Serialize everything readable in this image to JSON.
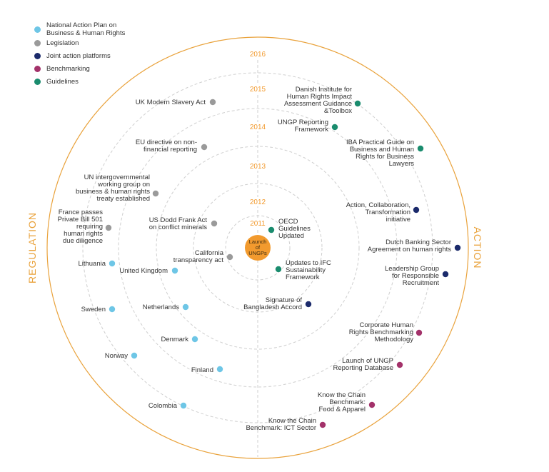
{
  "legend": [
    {
      "id": "nap",
      "label_lines": [
        "National Action Plan on",
        "Business & Human Rights"
      ],
      "color": "#6ec6e6"
    },
    {
      "id": "leg",
      "label_lines": [
        "Legislation"
      ],
      "color": "#9a9a9a"
    },
    {
      "id": "jap",
      "label_lines": [
        "Joint action platforms"
      ],
      "color": "#1b2a6b"
    },
    {
      "id": "ben",
      "label_lines": [
        "Benchmarking"
      ],
      "color": "#a3326a"
    },
    {
      "id": "gui",
      "label_lines": [
        "Guidelines"
      ],
      "color": "#1a8c6e"
    }
  ],
  "years": [
    "2016",
    "2015",
    "2014",
    "2013",
    "2012",
    "2011"
  ],
  "sides": {
    "left": "REGULATION",
    "right": "ACTION"
  },
  "center": {
    "lines": [
      "Launch",
      "of",
      "UNGPs"
    ],
    "color": "#f29a2e"
  },
  "items": [
    {
      "type": "leg",
      "lines": [
        "UK Modern Slavery Act"
      ]
    },
    {
      "type": "leg",
      "lines": [
        "EU directive on non-",
        "financial reporting"
      ]
    },
    {
      "type": "leg",
      "lines": [
        "UN intergovernmental",
        "working group on",
        "business & human rights",
        "treaty established"
      ]
    },
    {
      "type": "leg",
      "lines": [
        "France passes",
        "Private Bill 501",
        "requiring",
        "human rights",
        "due diligence"
      ]
    },
    {
      "type": "leg",
      "lines": [
        "US Dodd Frank Act",
        "on conflict minerals"
      ]
    },
    {
      "type": "leg",
      "lines": [
        "California",
        "transparency act"
      ]
    },
    {
      "type": "nap",
      "lines": [
        "Lithuania"
      ]
    },
    {
      "type": "nap",
      "lines": [
        "United Kingdom"
      ]
    },
    {
      "type": "nap",
      "lines": [
        "Sweden"
      ]
    },
    {
      "type": "nap",
      "lines": [
        "Netherlands"
      ]
    },
    {
      "type": "nap",
      "lines": [
        "Denmark"
      ]
    },
    {
      "type": "nap",
      "lines": [
        "Norway"
      ]
    },
    {
      "type": "nap",
      "lines": [
        "Finland"
      ]
    },
    {
      "type": "nap",
      "lines": [
        "Colombia"
      ]
    },
    {
      "type": "gui",
      "lines": [
        "Danish Institute for",
        "Human Rights Impact",
        "Assessment Guidance",
        "&Toolbox"
      ]
    },
    {
      "type": "gui",
      "lines": [
        "UNGP Reporting",
        "Framework"
      ]
    },
    {
      "type": "gui",
      "lines": [
        "IBA Practical Guide on",
        "Business and Human",
        "Rights for Business",
        "Lawyers"
      ]
    },
    {
      "type": "gui",
      "lines": [
        "OECD",
        "Guidelines",
        "Updated"
      ]
    },
    {
      "type": "gui",
      "lines": [
        "Updates to IFC",
        "Sustainability",
        "Framework"
      ]
    },
    {
      "type": "jap",
      "lines": [
        "Action, Collaboration,",
        "Transformation",
        "initiative"
      ]
    },
    {
      "type": "jap",
      "lines": [
        "Dutch Banking Sector",
        "Agreement on human rights"
      ]
    },
    {
      "type": "jap",
      "lines": [
        "Leadership Group",
        "for Responsible",
        "Recruitment"
      ]
    },
    {
      "type": "jap",
      "lines": [
        "Signature of",
        "Bangladesh Accord"
      ]
    },
    {
      "type": "ben",
      "lines": [
        "Corporate Human",
        "Rights Benchmarking",
        "Methodology"
      ]
    },
    {
      "type": "ben",
      "lines": [
        "Launch of UNGP",
        "Reporting Database"
      ]
    },
    {
      "type": "ben",
      "lines": [
        "Know the Chain",
        "Benchmark:",
        "Food & Apparel"
      ]
    },
    {
      "type": "ben",
      "lines": [
        "Know the Chain",
        "Benchmark: ICT Sector"
      ]
    }
  ]
}
